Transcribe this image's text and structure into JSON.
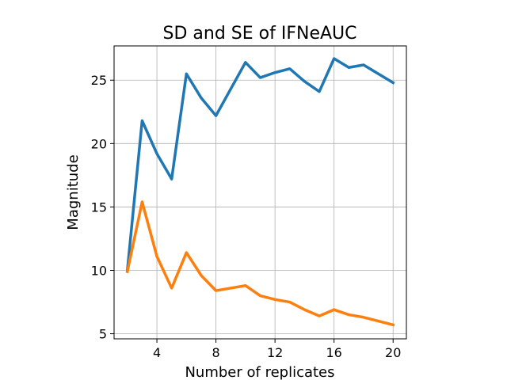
{
  "chart_data": {
    "type": "line",
    "title": "SD and SE of IFNeAUC",
    "xlabel": "Number of replicates",
    "ylabel": "Magnitude",
    "x": [
      2,
      3,
      4,
      5,
      6,
      7,
      8,
      9,
      10,
      11,
      12,
      13,
      14,
      15,
      16,
      17,
      18,
      19,
      20
    ],
    "series": [
      {
        "color": "#1f77b4",
        "values": [
          10.0,
          21.8,
          19.2,
          17.2,
          25.5,
          23.6,
          22.2,
          24.3,
          26.4,
          25.2,
          25.6,
          25.9,
          24.9,
          24.1,
          26.7,
          26.0,
          26.2,
          25.5,
          24.8
        ]
      },
      {
        "color": "#ff7f0e",
        "values": [
          9.9,
          15.4,
          11.1,
          8.6,
          11.4,
          9.6,
          8.4,
          8.6,
          8.8,
          8.0,
          7.7,
          7.5,
          6.9,
          6.4,
          6.9,
          6.5,
          6.3,
          6.0,
          5.7
        ]
      }
    ],
    "xlim": [
      1.1,
      20.9
    ],
    "ylim": [
      4.6,
      27.7
    ],
    "xticks": [
      4,
      8,
      12,
      16,
      20
    ],
    "yticks": [
      5,
      10,
      15,
      20,
      25
    ],
    "grid": true,
    "legend": "none"
  }
}
